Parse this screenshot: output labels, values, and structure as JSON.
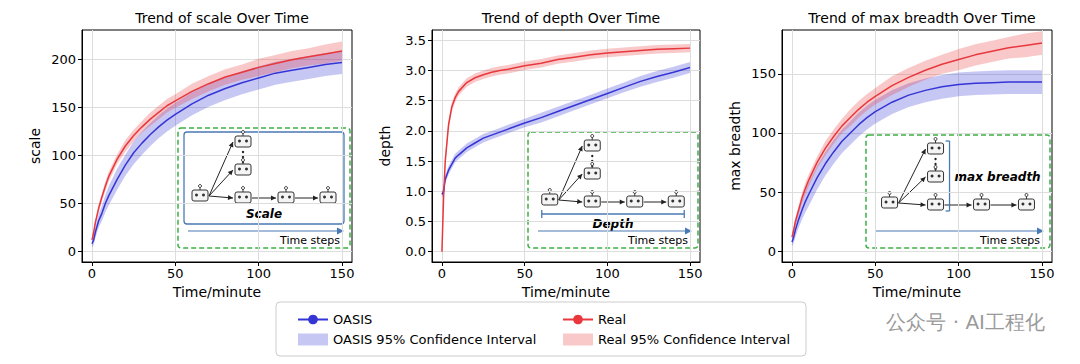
{
  "chart_data": [
    {
      "type": "line",
      "title": "Trend of scale Over Time",
      "x_label": "Time/minute",
      "y_label": "scale",
      "x": [
        0,
        1,
        2,
        4,
        6,
        8,
        10,
        15,
        20,
        25,
        30,
        35,
        40,
        45,
        50,
        60,
        70,
        80,
        90,
        100,
        110,
        120,
        130,
        140,
        150
      ],
      "xlim": [
        -6,
        156
      ],
      "xticks": [
        0,
        50,
        100,
        150
      ],
      "ylim": [
        -11,
        231
      ],
      "yticks": [
        0,
        50,
        100,
        150,
        200
      ],
      "grid": true,
      "legend": "bottom",
      "inset": {
        "label": "Scale",
        "axis_label": "Time steps"
      },
      "series": [
        {
          "name": "OASIS",
          "color": "#3535d6",
          "values": [
            8,
            12,
            20,
            32,
            40,
            50,
            58,
            75,
            90,
            103,
            113,
            122,
            130,
            137,
            143,
            154,
            163,
            170,
            176,
            181,
            186,
            189,
            192,
            195,
            197
          ],
          "ci": {
            "name": "OASIS 95% Confidence Interval",
            "lower": [
              4,
              7,
              14,
              25,
              32,
              41,
              48,
              64,
              79,
              91,
              101,
              110,
              118,
              125,
              131,
              142,
              151,
              158,
              164,
              169,
              174,
              177,
              180,
              183,
              185
            ],
            "upper": [
              12,
              17,
              26,
              39,
              48,
              59,
              68,
              86,
              101,
              115,
              125,
              134,
              142,
              149,
              155,
              166,
              175,
              182,
              188,
              193,
              198,
              201,
              204,
              207,
              209
            ]
          }
        },
        {
          "name": "Real",
          "color": "#e8383d",
          "values": [
            12,
            20,
            30,
            45,
            57,
            68,
            78,
            96,
            110,
            121,
            130,
            138,
            145,
            152,
            157,
            167,
            175,
            182,
            187,
            192,
            196,
            200,
            203,
            206,
            209
          ],
          "ci": {
            "name": "Real 95% Confidence Interval",
            "lower": [
              10,
              17,
              27,
              41,
              53,
              63,
              73,
              91,
              104,
              115,
              124,
              131,
              138,
              145,
              150,
              159,
              167,
              174,
              179,
              183,
              187,
              191,
              194,
              196,
              199
            ],
            "upper": [
              14,
              23,
              33,
              49,
              61,
              73,
              83,
              101,
              116,
              127,
              136,
              145,
              152,
              159,
              164,
              175,
              183,
              190,
              195,
              201,
              205,
              209,
              212,
              216,
              219
            ]
          }
        }
      ]
    },
    {
      "type": "line",
      "title": "Trend of depth Over Time",
      "x_label": "Time/minute",
      "y_label": "depth",
      "x": [
        0,
        1,
        2,
        4,
        6,
        8,
        10,
        15,
        20,
        25,
        30,
        35,
        40,
        45,
        50,
        60,
        70,
        80,
        90,
        100,
        110,
        120,
        130,
        140,
        150
      ],
      "xlim": [
        -6,
        156
      ],
      "xticks": [
        0,
        50,
        100,
        150
      ],
      "ylim": [
        -0.17,
        3.67
      ],
      "yticks": [
        {
          "value": 0,
          "label": "0.0"
        },
        0.5,
        {
          "value": 1,
          "label": "1.0"
        },
        1.5,
        {
          "value": 2,
          "label": "2.0"
        },
        2.5,
        {
          "value": 3,
          "label": "3.0"
        },
        3.5
      ],
      "grid": true,
      "legend": "bottom",
      "inset": {
        "label": "Depth",
        "axis_label": "Time steps"
      },
      "series": [
        {
          "name": "OASIS",
          "color": "#3535d6",
          "values": [
            0.95,
            1.0,
            1.2,
            1.35,
            1.45,
            1.55,
            1.6,
            1.72,
            1.8,
            1.88,
            1.93,
            1.98,
            2.03,
            2.08,
            2.13,
            2.22,
            2.32,
            2.42,
            2.52,
            2.62,
            2.72,
            2.82,
            2.9,
            2.97,
            3.05
          ],
          "ci": {
            "name": "OASIS 95% Confidence Interval",
            "lower": [
              0.9,
              0.93,
              1.13,
              1.28,
              1.38,
              1.48,
              1.53,
              1.65,
              1.73,
              1.81,
              1.86,
              1.91,
              1.96,
              2.01,
              2.06,
              2.14,
              2.24,
              2.34,
              2.44,
              2.54,
              2.64,
              2.73,
              2.81,
              2.88,
              2.96
            ],
            "upper": [
              1.0,
              1.07,
              1.27,
              1.42,
              1.52,
              1.62,
              1.67,
              1.79,
              1.87,
              1.95,
              2.0,
              2.05,
              2.1,
              2.15,
              2.2,
              2.3,
              2.4,
              2.5,
              2.6,
              2.7,
              2.8,
              2.91,
              2.99,
              3.06,
              3.14
            ]
          }
        },
        {
          "name": "Real",
          "color": "#e8383d",
          "values": [
            0,
            0.9,
            1.5,
            2.1,
            2.4,
            2.55,
            2.65,
            2.8,
            2.88,
            2.93,
            2.97,
            3.0,
            3.02,
            3.05,
            3.08,
            3.12,
            3.18,
            3.22,
            3.26,
            3.29,
            3.31,
            3.33,
            3.35,
            3.36,
            3.37
          ],
          "ci": {
            "name": "Real 95% Confidence Interval",
            "lower": [
              0,
              0.82,
              1.42,
              2.02,
              2.32,
              2.48,
              2.58,
              2.73,
              2.81,
              2.86,
              2.9,
              2.93,
              2.95,
              2.98,
              3.01,
              3.05,
              3.11,
              3.15,
              3.19,
              3.22,
              3.24,
              3.26,
              3.28,
              3.29,
              3.3
            ],
            "upper": [
              0.02,
              0.98,
              1.58,
              2.18,
              2.48,
              2.62,
              2.72,
              2.87,
              2.95,
              3.0,
              3.04,
              3.07,
              3.09,
              3.12,
              3.15,
              3.19,
              3.25,
              3.29,
              3.33,
              3.36,
              3.38,
              3.4,
              3.42,
              3.43,
              3.44
            ]
          }
        }
      ]
    },
    {
      "type": "line",
      "title": "Trend of max breadth Over Time",
      "x_label": "Time/minute",
      "y_label": "max breadth",
      "x": [
        0,
        1,
        2,
        4,
        6,
        8,
        10,
        15,
        20,
        25,
        30,
        35,
        40,
        45,
        50,
        60,
        70,
        80,
        90,
        100,
        110,
        120,
        130,
        140,
        150
      ],
      "xlim": [
        -6,
        156
      ],
      "xticks": [
        0,
        50,
        100,
        150
      ],
      "ylim": [
        -9,
        187
      ],
      "yticks": [
        0,
        50,
        100,
        150
      ],
      "grid": true,
      "legend": "bottom",
      "inset": {
        "label": "max breadth",
        "axis_label": "Time steps"
      },
      "series": [
        {
          "name": "OASIS",
          "color": "#3535d6",
          "values": [
            8,
            12,
            18,
            27,
            35,
            42,
            48,
            62,
            74,
            84,
            93,
            100,
            107,
            113,
            118,
            126,
            132,
            136,
            139,
            141,
            142,
            142.5,
            143,
            143,
            143
          ],
          "ci": {
            "name": "OASIS 95% Confidence Interval",
            "lower": [
              4,
              7,
              12,
              20,
              27,
              33,
              38,
              52,
              64,
              74,
              83,
              90,
              97,
              103,
              108,
              116,
              122,
              126,
              129,
              131,
              132,
              132.5,
              133,
              133,
              133
            ],
            "upper": [
              12,
              17,
              24,
              34,
              43,
              51,
              58,
              72,
              84,
              94,
              103,
              110,
              117,
              123,
              128,
              136,
              142,
              146,
              149,
              151,
              152,
              152.5,
              153,
              153,
              153
            ]
          }
        },
        {
          "name": "Real",
          "color": "#e8383d",
          "values": [
            12,
            18,
            25,
            35,
            45,
            53,
            60,
            75,
            87,
            97,
            106,
            113,
            120,
            126,
            131,
            140,
            147,
            153,
            158,
            162,
            166,
            169,
            172,
            174,
            176
          ],
          "ci": {
            "name": "Real 95% Confidence Interval",
            "lower": [
              10,
              15,
              22,
              31,
              41,
              48,
              55,
              70,
              81,
              91,
              100,
              106,
              113,
              119,
              124,
              132,
              139,
              145,
              150,
              153,
              157,
              160,
              163,
              164,
              166
            ],
            "upper": [
              14,
              21,
              28,
              39,
              49,
              58,
              65,
              80,
              93,
              103,
              112,
              120,
              127,
              133,
              138,
              148,
              155,
              161,
              166,
              171,
              175,
              178,
              181,
              184,
              186
            ]
          }
        }
      ]
    }
  ],
  "watermark": "公众号 · AI工程化"
}
